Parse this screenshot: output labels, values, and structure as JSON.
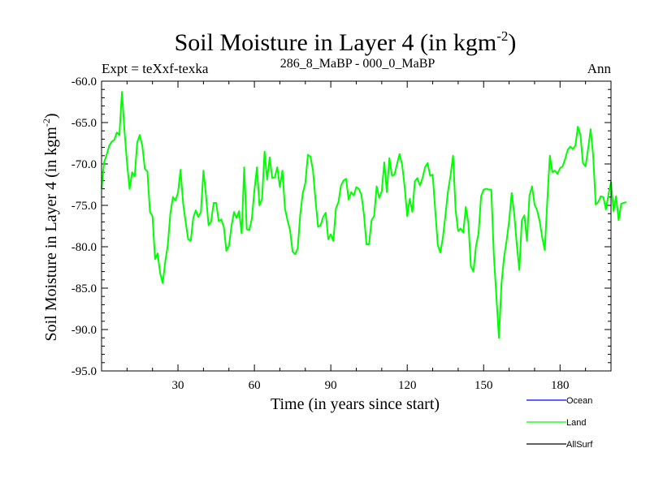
{
  "chart_data": {
    "type": "line",
    "title": "Soil Moisture in Layer 4 (in kgm",
    "title_sup": "-2",
    "title_close": ")",
    "subtitle_left": "Expt = teXxf-texka",
    "subtitle_center": "286_8_MaBP - 000_0_MaBP",
    "subtitle_right": "Ann",
    "xlabel": "Time (in years since start)",
    "ylabel": "Soil Moisture in Layer 4 (in kgm",
    "ylabel_sup": "-2",
    "ylabel_close": ")",
    "xlim": [
      0,
      200
    ],
    "ylim": [
      -95,
      -60
    ],
    "xticks": [
      30,
      60,
      90,
      120,
      150,
      180
    ],
    "xtick_labels": [
      "30",
      "60",
      "90",
      "120",
      "150",
      "180"
    ],
    "yticks": [
      -60,
      -65,
      -70,
      -75,
      -80,
      -85,
      -90,
      -95
    ],
    "ytick_labels": [
      "-60.0",
      "-65.0",
      "-70.0",
      "-75.0",
      "-80.0",
      "-85.0",
      "-90.0",
      "-95.0"
    ],
    "legend": [
      {
        "name": "Ocean",
        "color": "#0000ff"
      },
      {
        "name": "Land",
        "color": "#00ff00"
      },
      {
        "name": "AllSurf",
        "color": "#000000"
      }
    ],
    "series": [
      {
        "name": "Land",
        "color": "#00ff00",
        "values": [
          -73.0,
          -69.8,
          -68.9,
          -67.8,
          -67.3,
          -67.1,
          -66.2,
          -66.5,
          -61.3,
          -66.0,
          -69.9,
          -73.0,
          -71.0,
          -71.5,
          -67.4,
          -66.5,
          -67.8,
          -70.6,
          -70.9,
          -75.8,
          -76.3,
          -81.5,
          -80.8,
          -83.2,
          -84.4,
          -81.8,
          -79.8,
          -76.0,
          -74.0,
          -74.4,
          -73.5,
          -70.7,
          -74.7,
          -77.0,
          -79.1,
          -79.3,
          -76.5,
          -75.6,
          -76.4,
          -75.8,
          -70.8,
          -73.8,
          -77.4,
          -77.0,
          -74.7,
          -74.7,
          -76.9,
          -76.7,
          -77.6,
          -80.5,
          -79.9,
          -77.5,
          -75.8,
          -76.5,
          -75.7,
          -78.4,
          -70.4,
          -77.9,
          -78.0,
          -76.6,
          -73.2,
          -70.4,
          -75.0,
          -74.2,
          -68.5,
          -71.9,
          -69.2,
          -71.7,
          -71.6,
          -70.4,
          -72.8,
          -70.8,
          -75.4,
          -76.8,
          -78.0,
          -80.6,
          -80.9,
          -80.2,
          -76.1,
          -73.5,
          -72.3,
          -68.9,
          -69.1,
          -70.8,
          -74.4,
          -77.6,
          -77.4,
          -76.4,
          -75.9,
          -79.1,
          -78.5,
          -79.3,
          -75.4,
          -74.6,
          -72.6,
          -72.0,
          -71.8,
          -74.3,
          -73.4,
          -73.8,
          -72.8,
          -73.0,
          -73.7,
          -76.1,
          -79.7,
          -79.7,
          -76.8,
          -76.3,
          -72.7,
          -74.1,
          -73.3,
          -69.8,
          -73.4,
          -69.3,
          -71.4,
          -71.3,
          -70.0,
          -68.8,
          -70.1,
          -72.8,
          -76.3,
          -74.2,
          -75.8,
          -72.1,
          -71.7,
          -72.6,
          -71.7,
          -70.4,
          -69.9,
          -71.4,
          -71.3,
          -75.6,
          -79.8,
          -80.7,
          -78.9,
          -76.2,
          -73.3,
          -71.4,
          -69.0,
          -75.6,
          -78.1,
          -77.8,
          -78.3,
          -75.2,
          -77.1,
          -82.4,
          -83.0,
          -79.9,
          -78.4,
          -73.9,
          -73.1,
          -73.0,
          -73.1,
          -73.1,
          -81.0,
          -86.0,
          -91.0,
          -84.5,
          -81.3,
          -79.3,
          -76.9,
          -73.5,
          -76.0,
          -79.7,
          -82.8,
          -76.8,
          -76.2,
          -79.3,
          -73.8,
          -72.7,
          -74.9,
          -75.6,
          -76.9,
          -78.9,
          -80.4,
          -74.4,
          -69.0,
          -71.0,
          -70.8,
          -71.2,
          -70.5,
          -70.3,
          -69.4,
          -68.3,
          -67.9,
          -68.2,
          -67.8,
          -65.5,
          -66.5,
          -69.9,
          -70.3,
          -68.2,
          -65.8,
          -69.0,
          -74.9,
          -74.6,
          -73.9,
          -74.0,
          -75.5,
          -73.7,
          -72.2,
          -75.7,
          -73.9,
          -76.8,
          -74.8,
          -74.7,
          -74.6
        ]
      }
    ]
  }
}
